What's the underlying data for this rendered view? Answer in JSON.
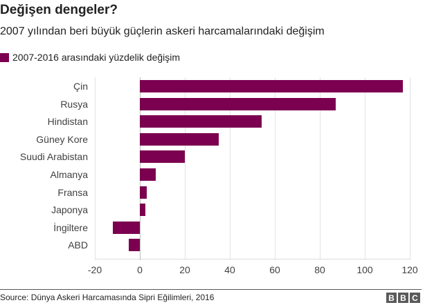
{
  "header": {
    "title": "Değişen dengeler?",
    "subtitle": "2007 yılından beri büyük güçlerin askeri harcamalarındaki değişim"
  },
  "legend": {
    "label": "2007-2016 arasındaki yüzdelik değişim",
    "color": "#7b0050"
  },
  "footer": {
    "source": "Source: Dünya Askeri Harcamasında Sipri Eğilimleri, 2016",
    "logo_letters": [
      "B",
      "B",
      "C"
    ]
  },
  "chart_data": {
    "type": "bar",
    "orientation": "horizontal",
    "title": "Değişen dengeler?",
    "subtitle": "2007 yılından beri büyük güçlerin askeri harcamalarındaki değişim",
    "categories": [
      "Çin",
      "Rusya",
      "Hindistan",
      "Güney Kore",
      "Suudi Arabistan",
      "Almanya",
      "Fransa",
      "Japonya",
      "İngiltere",
      "ABD"
    ],
    "series": [
      {
        "name": "2007-2016 arasındaki yüzdelik değişim",
        "color": "#7b0050",
        "values": [
          117,
          87,
          54,
          35,
          20,
          7,
          3,
          2.5,
          -12,
          -5
        ]
      }
    ],
    "xlabel": "",
    "ylabel": "",
    "xlim": [
      -20,
      120
    ],
    "xticks": [
      -20,
      0,
      20,
      40,
      60,
      80,
      100,
      120
    ],
    "grid": true,
    "legend_position": "top-left",
    "source": "Source: Dünya Askeri Harcamasında Sipri Eğilimleri, 2016"
  }
}
